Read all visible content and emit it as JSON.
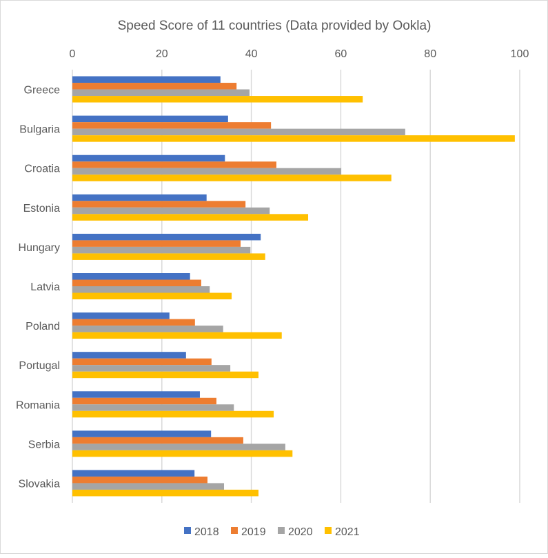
{
  "chart_data": {
    "type": "bar",
    "orientation": "horizontal",
    "title": "Speed Score of 11 countries (Data provided by Ookla)",
    "categories": [
      "Greece",
      "Bulgaria",
      "Croatia",
      "Estonia",
      "Hungary",
      "Latvia",
      "Poland",
      "Portugal",
      "Romania",
      "Serbia",
      "Slovakia"
    ],
    "series": [
      {
        "name": "2018",
        "color": "#4472C4",
        "values": [
          33.1,
          34.8,
          34.1,
          30.0,
          42.1,
          26.3,
          21.7,
          25.4,
          28.5,
          31.0,
          27.3
        ]
      },
      {
        "name": "2019",
        "color": "#ED7D31",
        "values": [
          36.7,
          44.4,
          45.6,
          38.7,
          37.6,
          28.8,
          27.4,
          31.1,
          32.2,
          38.2,
          30.2
        ]
      },
      {
        "name": "2020",
        "color": "#A5A5A5",
        "values": [
          39.6,
          74.4,
          60.1,
          44.1,
          39.8,
          30.7,
          33.7,
          35.3,
          36.1,
          47.6,
          33.9
        ]
      },
      {
        "name": "2021",
        "color": "#FFC000",
        "values": [
          64.9,
          98.9,
          71.3,
          52.7,
          43.1,
          35.6,
          46.8,
          41.6,
          45.0,
          49.2,
          41.6
        ]
      }
    ],
    "xlim": [
      0,
      100
    ],
    "xticks": [
      "0",
      "20",
      "40",
      "60",
      "80",
      "100"
    ],
    "xaxis_position": "top",
    "grid": true,
    "legend": "bottom"
  }
}
